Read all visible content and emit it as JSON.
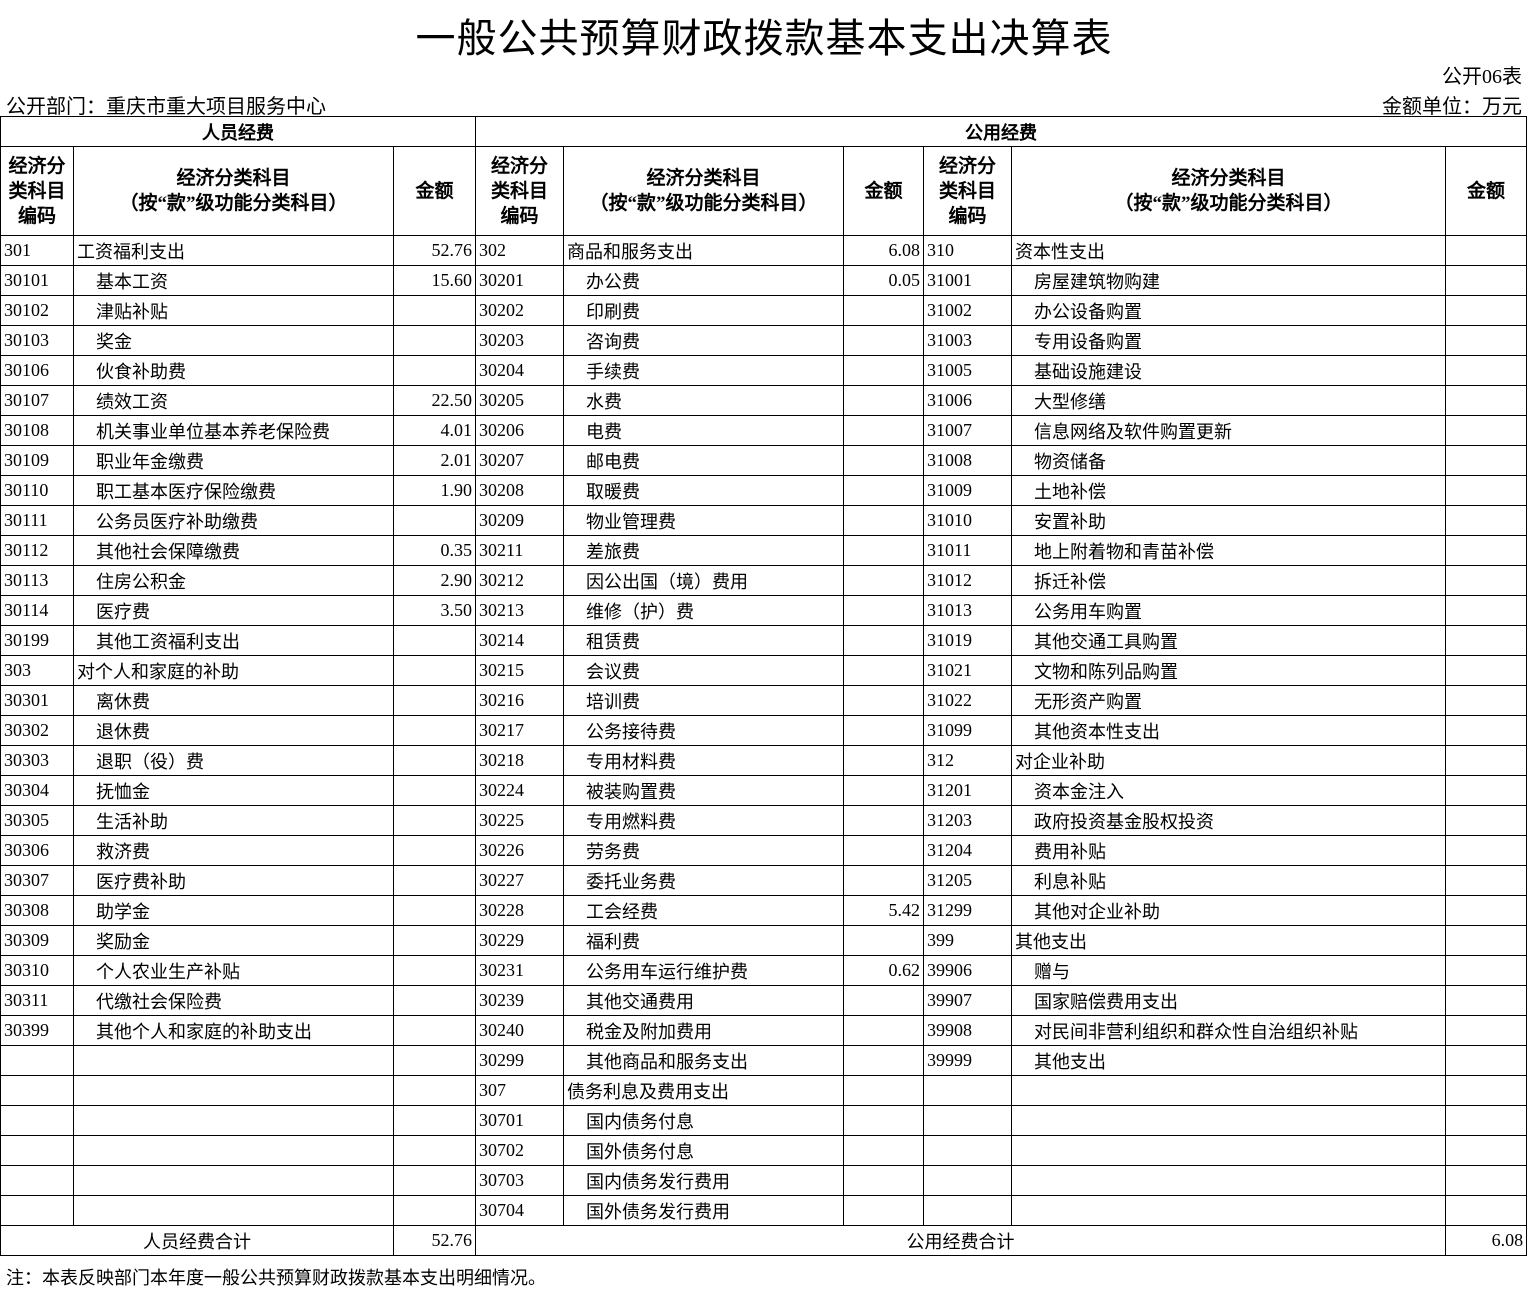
{
  "title": "一般公共预算财政拨款基本支出决算表",
  "form_no": "公开06表",
  "department": "公开部门：重庆市重大项目服务中心",
  "unit": "金额单位：万元",
  "headers": {
    "personnel": "人员经费",
    "public": "公用经费",
    "code": "经济分类科目编码",
    "code_lines": [
      "经济分",
      "类科目",
      "编码"
    ],
    "item_line1": "经济分类科目",
    "item_line2": "（按“款”级功能分类科目）",
    "amount": "金额"
  },
  "rows": [
    [
      [
        "301",
        "工资福利支出",
        "52.76"
      ],
      [
        "302",
        "商品和服务支出",
        "6.08"
      ],
      [
        "310",
        "资本性支出",
        ""
      ]
    ],
    [
      [
        "30101",
        "基本工资",
        "15.60"
      ],
      [
        "30201",
        "办公费",
        "0.05"
      ],
      [
        "31001",
        "房屋建筑物购建",
        ""
      ]
    ],
    [
      [
        "30102",
        "津贴补贴",
        ""
      ],
      [
        "30202",
        "印刷费",
        ""
      ],
      [
        "31002",
        "办公设备购置",
        ""
      ]
    ],
    [
      [
        "30103",
        "奖金",
        ""
      ],
      [
        "30203",
        "咨询费",
        ""
      ],
      [
        "31003",
        "专用设备购置",
        ""
      ]
    ],
    [
      [
        "30106",
        "伙食补助费",
        ""
      ],
      [
        "30204",
        "手续费",
        ""
      ],
      [
        "31005",
        "基础设施建设",
        ""
      ]
    ],
    [
      [
        "30107",
        "绩效工资",
        "22.50"
      ],
      [
        "30205",
        "水费",
        ""
      ],
      [
        "31006",
        "大型修缮",
        ""
      ]
    ],
    [
      [
        "30108",
        "机关事业单位基本养老保险费",
        "4.01"
      ],
      [
        "30206",
        "电费",
        ""
      ],
      [
        "31007",
        "信息网络及软件购置更新",
        ""
      ]
    ],
    [
      [
        "30109",
        "职业年金缴费",
        "2.01"
      ],
      [
        "30207",
        "邮电费",
        ""
      ],
      [
        "31008",
        "物资储备",
        ""
      ]
    ],
    [
      [
        "30110",
        "职工基本医疗保险缴费",
        "1.90"
      ],
      [
        "30208",
        "取暖费",
        ""
      ],
      [
        "31009",
        "土地补偿",
        ""
      ]
    ],
    [
      [
        "30111",
        "公务员医疗补助缴费",
        ""
      ],
      [
        "30209",
        "物业管理费",
        ""
      ],
      [
        "31010",
        "安置补助",
        ""
      ]
    ],
    [
      [
        "30112",
        "其他社会保障缴费",
        "0.35"
      ],
      [
        "30211",
        "差旅费",
        ""
      ],
      [
        "31011",
        "地上附着物和青苗补偿",
        ""
      ]
    ],
    [
      [
        "30113",
        "住房公积金",
        "2.90"
      ],
      [
        "30212",
        "因公出国（境）费用",
        ""
      ],
      [
        "31012",
        "拆迁补偿",
        ""
      ]
    ],
    [
      [
        "30114",
        "医疗费",
        "3.50"
      ],
      [
        "30213",
        "维修（护）费",
        ""
      ],
      [
        "31013",
        "公务用车购置",
        ""
      ]
    ],
    [
      [
        "30199",
        "其他工资福利支出",
        ""
      ],
      [
        "30214",
        "租赁费",
        ""
      ],
      [
        "31019",
        "其他交通工具购置",
        ""
      ]
    ],
    [
      [
        "303",
        "对个人和家庭的补助",
        ""
      ],
      [
        "30215",
        "会议费",
        ""
      ],
      [
        "31021",
        "文物和陈列品购置",
        ""
      ]
    ],
    [
      [
        "30301",
        "离休费",
        ""
      ],
      [
        "30216",
        "培训费",
        ""
      ],
      [
        "31022",
        "无形资产购置",
        ""
      ]
    ],
    [
      [
        "30302",
        "退休费",
        ""
      ],
      [
        "30217",
        "公务接待费",
        ""
      ],
      [
        "31099",
        "其他资本性支出",
        ""
      ]
    ],
    [
      [
        "30303",
        "退职（役）费",
        ""
      ],
      [
        "30218",
        "专用材料费",
        ""
      ],
      [
        "312",
        "对企业补助",
        ""
      ]
    ],
    [
      [
        "30304",
        "抚恤金",
        ""
      ],
      [
        "30224",
        "被装购置费",
        ""
      ],
      [
        "31201",
        "资本金注入",
        ""
      ]
    ],
    [
      [
        "30305",
        "生活补助",
        ""
      ],
      [
        "30225",
        "专用燃料费",
        ""
      ],
      [
        "31203",
        "政府投资基金股权投资",
        ""
      ]
    ],
    [
      [
        "30306",
        "救济费",
        ""
      ],
      [
        "30226",
        "劳务费",
        ""
      ],
      [
        "31204",
        "费用补贴",
        ""
      ]
    ],
    [
      [
        "30307",
        "医疗费补助",
        ""
      ],
      [
        "30227",
        "委托业务费",
        ""
      ],
      [
        "31205",
        "利息补贴",
        ""
      ]
    ],
    [
      [
        "30308",
        "助学金",
        ""
      ],
      [
        "30228",
        "工会经费",
        "5.42"
      ],
      [
        "31299",
        "其他对企业补助",
        ""
      ]
    ],
    [
      [
        "30309",
        "奖励金",
        ""
      ],
      [
        "30229",
        "福利费",
        ""
      ],
      [
        "399",
        "其他支出",
        ""
      ]
    ],
    [
      [
        "30310",
        "个人农业生产补贴",
        ""
      ],
      [
        "30231",
        "公务用车运行维护费",
        "0.62"
      ],
      [
        "39906",
        "赠与",
        ""
      ]
    ],
    [
      [
        "30311",
        "代缴社会保险费",
        ""
      ],
      [
        "30239",
        "其他交通费用",
        ""
      ],
      [
        "39907",
        "国家赔偿费用支出",
        ""
      ]
    ],
    [
      [
        "30399",
        "其他个人和家庭的补助支出",
        ""
      ],
      [
        "30240",
        "税金及附加费用",
        ""
      ],
      [
        "39908",
        "对民间非营利组织和群众性自治组织补贴",
        ""
      ]
    ],
    [
      [
        "",
        "",
        ""
      ],
      [
        "30299",
        "其他商品和服务支出",
        ""
      ],
      [
        "39999",
        "其他支出",
        ""
      ]
    ],
    [
      [
        "",
        "",
        ""
      ],
      [
        "307",
        "债务利息及费用支出",
        ""
      ],
      [
        "",
        "",
        ""
      ]
    ],
    [
      [
        "",
        "",
        ""
      ],
      [
        "30701",
        "国内债务付息",
        ""
      ],
      [
        "",
        "",
        ""
      ]
    ],
    [
      [
        "",
        "",
        ""
      ],
      [
        "30702",
        "国外债务付息",
        ""
      ],
      [
        "",
        "",
        ""
      ]
    ],
    [
      [
        "",
        "",
        ""
      ],
      [
        "30703",
        "国内债务发行费用",
        ""
      ],
      [
        "",
        "",
        ""
      ]
    ],
    [
      [
        "",
        "",
        ""
      ],
      [
        "30704",
        "国外债务发行费用",
        ""
      ],
      [
        "",
        "",
        ""
      ]
    ]
  ],
  "totals": {
    "personnel_label": "人员经费合计",
    "personnel_value": "52.76",
    "public_label": "公用经费合计",
    "public_value": "6.08"
  },
  "note": "注：本表反映部门本年度一般公共预算财政拨款基本支出明细情况。"
}
